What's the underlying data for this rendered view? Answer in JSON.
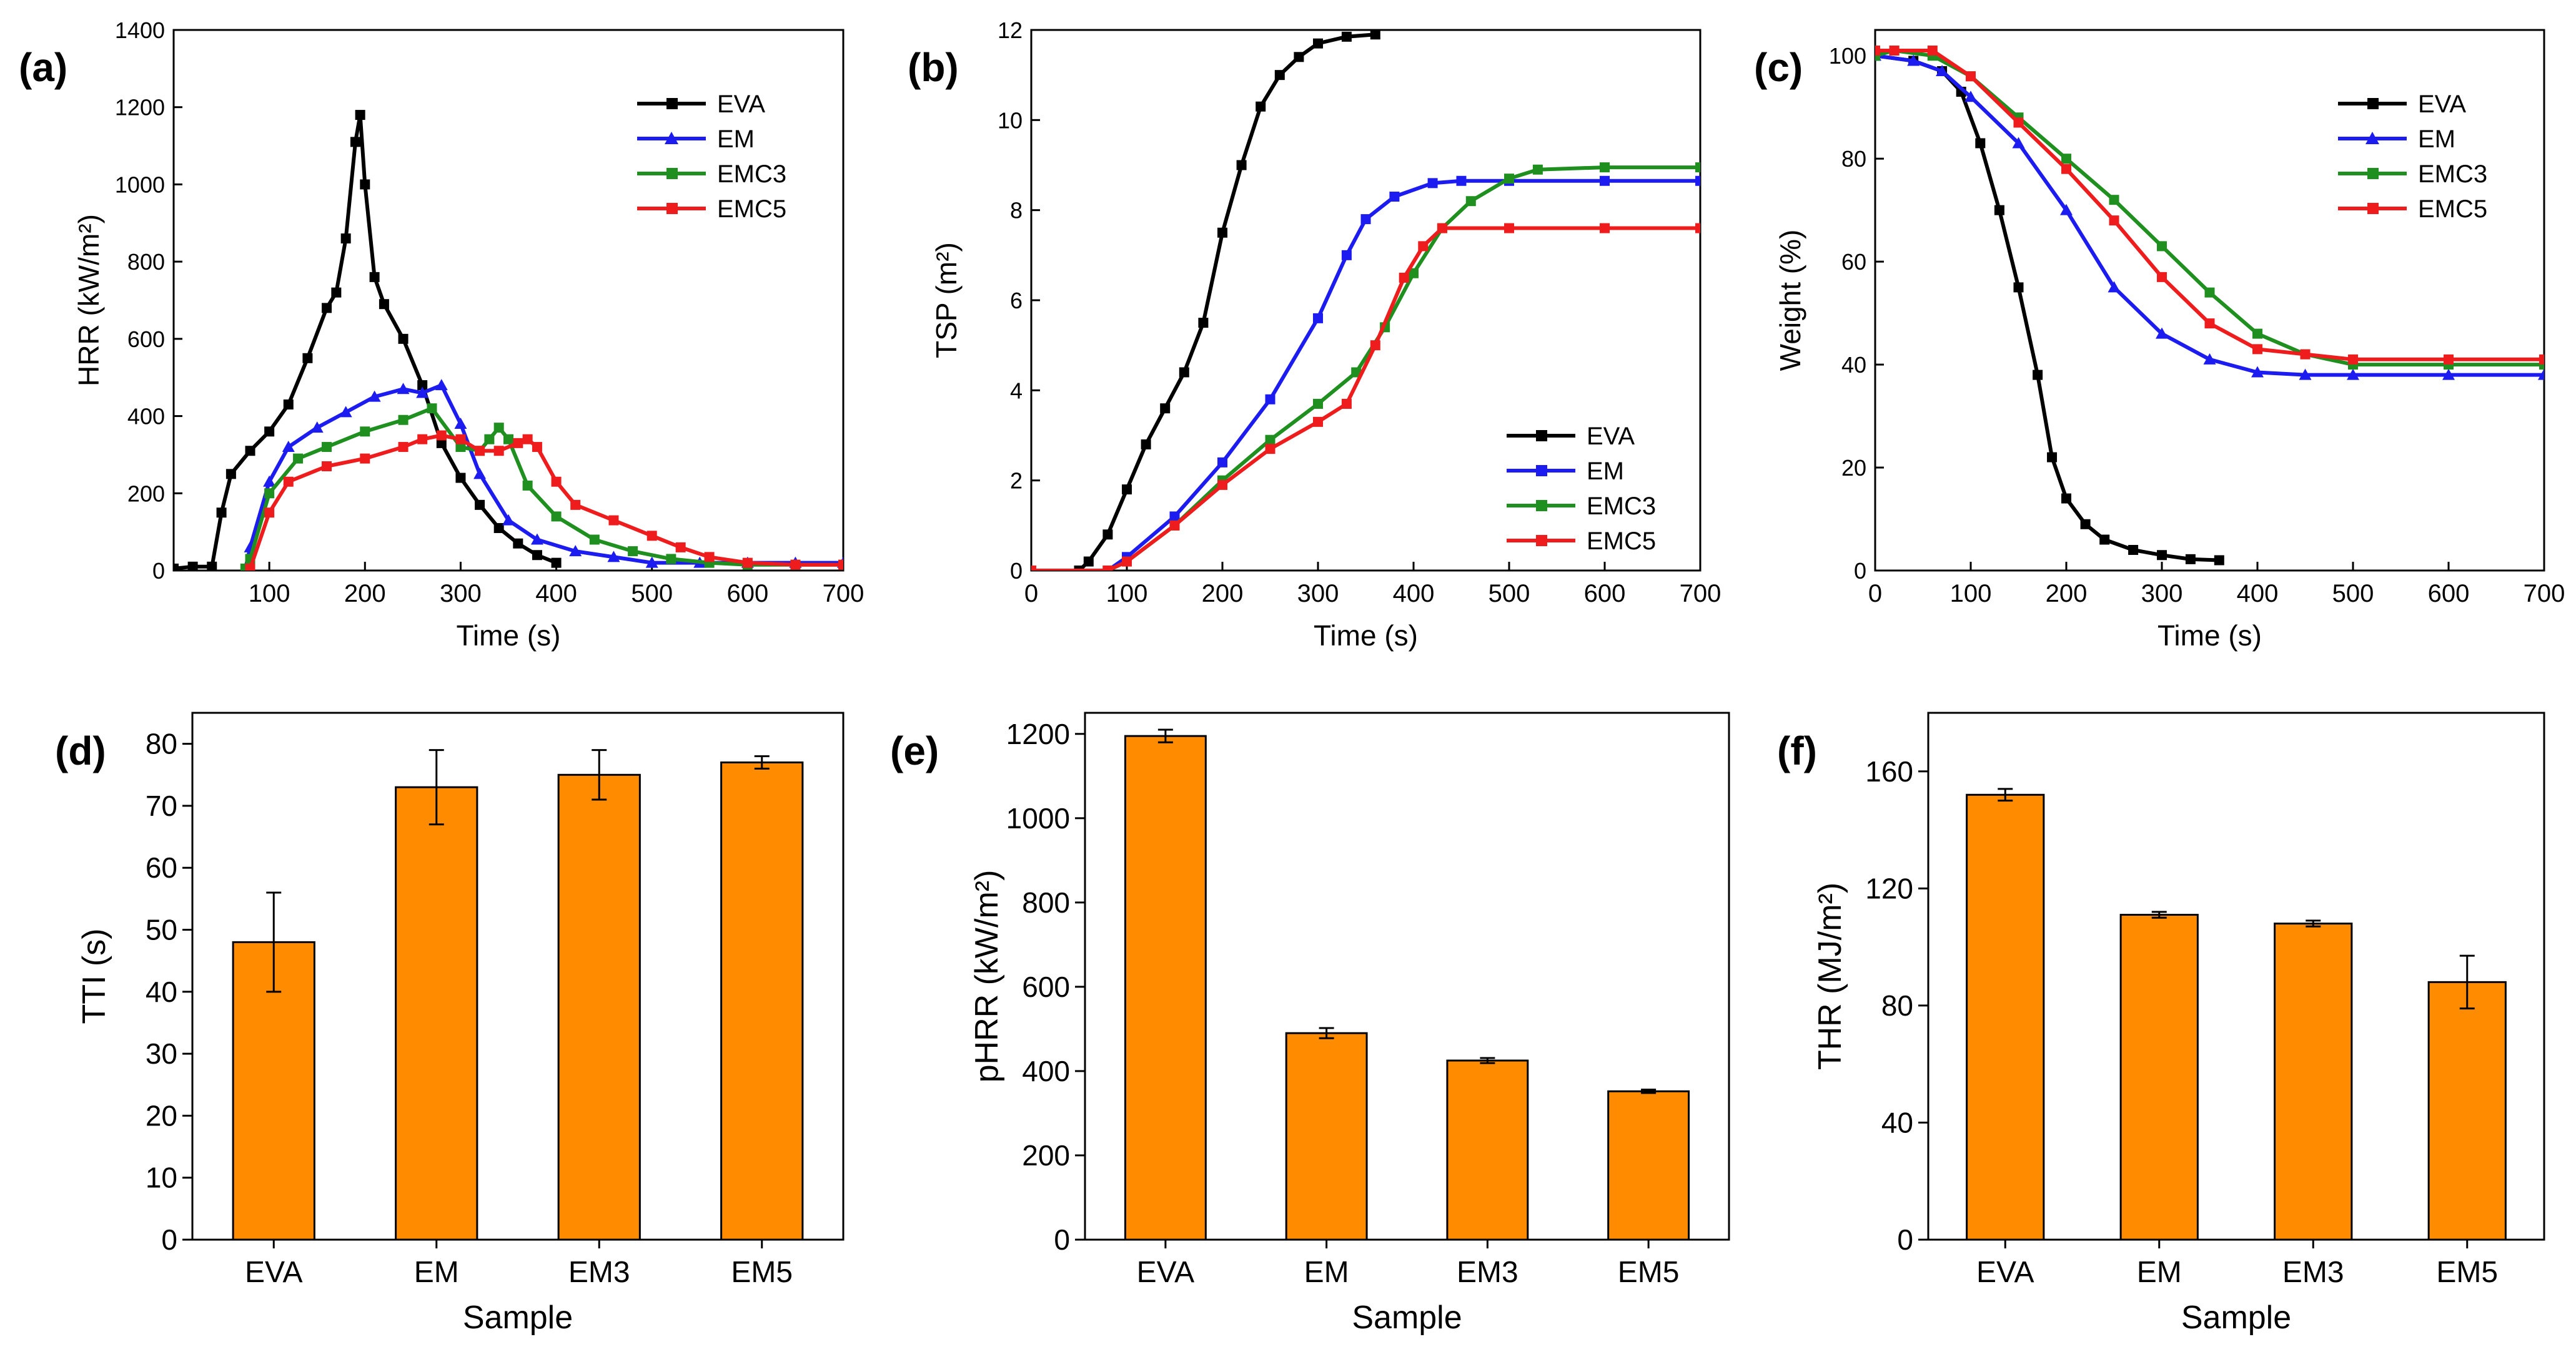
{
  "colors": {
    "EVA": "#000000",
    "EM": "#1c1cf0",
    "EMC3": "#1f8f1f",
    "EMC5": "#ee1c1c",
    "bar": "#ff8c00",
    "bar_edge": "#000000"
  },
  "chart_data": [
    {
      "id": "a",
      "panel_label": "(a)",
      "type": "line",
      "xlabel": "Time (s)",
      "ylabel": "HRR (kW/m²)",
      "xlim": [
        0,
        700
      ],
      "ylim": [
        0,
        1400
      ],
      "xticks": [
        100,
        200,
        300,
        400,
        500,
        600,
        700
      ],
      "yticks": [
        0,
        200,
        400,
        600,
        800,
        1000,
        1200,
        1400
      ],
      "legend": "top-right",
      "series": [
        {
          "name": "EVA",
          "marker": "square",
          "color": "#000000",
          "points": [
            [
              0,
              5
            ],
            [
              20,
              10
            ],
            [
              40,
              10
            ],
            [
              50,
              150
            ],
            [
              60,
              250
            ],
            [
              80,
              310
            ],
            [
              100,
              360
            ],
            [
              120,
              430
            ],
            [
              140,
              550
            ],
            [
              160,
              680
            ],
            [
              170,
              720
            ],
            [
              180,
              860
            ],
            [
              190,
              1110
            ],
            [
              195,
              1180
            ],
            [
              200,
              1000
            ],
            [
              210,
              760
            ],
            [
              220,
              690
            ],
            [
              240,
              600
            ],
            [
              260,
              480
            ],
            [
              280,
              330
            ],
            [
              300,
              240
            ],
            [
              320,
              170
            ],
            [
              340,
              110
            ],
            [
              360,
              70
            ],
            [
              380,
              40
            ],
            [
              400,
              20
            ]
          ]
        },
        {
          "name": "EM",
          "marker": "triangle",
          "color": "#1c1cf0",
          "points": [
            [
              75,
              5
            ],
            [
              80,
              60
            ],
            [
              100,
              230
            ],
            [
              120,
              320
            ],
            [
              150,
              370
            ],
            [
              180,
              410
            ],
            [
              210,
              450
            ],
            [
              240,
              470
            ],
            [
              260,
              460
            ],
            [
              280,
              480
            ],
            [
              300,
              380
            ],
            [
              320,
              250
            ],
            [
              350,
              130
            ],
            [
              380,
              80
            ],
            [
              420,
              50
            ],
            [
              460,
              35
            ],
            [
              500,
              20
            ],
            [
              550,
              20
            ],
            [
              600,
              20
            ],
            [
              650,
              20
            ],
            [
              700,
              20
            ]
          ]
        },
        {
          "name": "EMC3",
          "marker": "square",
          "color": "#1f8f1f",
          "points": [
            [
              75,
              5
            ],
            [
              80,
              30
            ],
            [
              100,
              200
            ],
            [
              130,
              290
            ],
            [
              160,
              320
            ],
            [
              200,
              360
            ],
            [
              240,
              390
            ],
            [
              270,
              420
            ],
            [
              300,
              320
            ],
            [
              320,
              310
            ],
            [
              330,
              340
            ],
            [
              340,
              370
            ],
            [
              350,
              340
            ],
            [
              370,
              220
            ],
            [
              400,
              140
            ],
            [
              440,
              80
            ],
            [
              480,
              50
            ],
            [
              520,
              30
            ],
            [
              560,
              20
            ],
            [
              600,
              15
            ],
            [
              650,
              15
            ],
            [
              700,
              15
            ]
          ]
        },
        {
          "name": "EMC5",
          "marker": "square",
          "color": "#ee1c1c",
          "points": [
            [
              80,
              5
            ],
            [
              100,
              150
            ],
            [
              120,
              230
            ],
            [
              160,
              270
            ],
            [
              200,
              290
            ],
            [
              240,
              320
            ],
            [
              260,
              340
            ],
            [
              280,
              350
            ],
            [
              300,
              340
            ],
            [
              320,
              310
            ],
            [
              340,
              310
            ],
            [
              360,
              330
            ],
            [
              370,
              340
            ],
            [
              380,
              320
            ],
            [
              400,
              230
            ],
            [
              420,
              170
            ],
            [
              460,
              130
            ],
            [
              500,
              90
            ],
            [
              530,
              60
            ],
            [
              560,
              35
            ],
            [
              600,
              20
            ],
            [
              650,
              15
            ],
            [
              700,
              15
            ]
          ]
        }
      ]
    },
    {
      "id": "b",
      "panel_label": "(b)",
      "type": "line",
      "xlabel": "Time (s)",
      "ylabel": "TSP (m²)",
      "xlim": [
        0,
        700
      ],
      "ylim": [
        0,
        12
      ],
      "xticks": [
        0,
        100,
        200,
        300,
        400,
        500,
        600,
        700
      ],
      "yticks": [
        0,
        2,
        4,
        6,
        8,
        10,
        12
      ],
      "legend": "bottom-right",
      "series": [
        {
          "name": "EVA",
          "marker": "square",
          "color": "#000000",
          "points": [
            [
              0,
              0
            ],
            [
              50,
              0
            ],
            [
              60,
              0.2
            ],
            [
              80,
              0.8
            ],
            [
              100,
              1.8
            ],
            [
              120,
              2.8
            ],
            [
              140,
              3.6
            ],
            [
              160,
              4.4
            ],
            [
              180,
              5.5
            ],
            [
              200,
              7.5
            ],
            [
              220,
              9.0
            ],
            [
              240,
              10.3
            ],
            [
              260,
              11.0
            ],
            [
              280,
              11.4
            ],
            [
              300,
              11.7
            ],
            [
              330,
              11.85
            ],
            [
              360,
              11.9
            ]
          ]
        },
        {
          "name": "EM",
          "marker": "square",
          "color": "#1c1cf0",
          "points": [
            [
              0,
              0
            ],
            [
              80,
              0
            ],
            [
              100,
              0.3
            ],
            [
              150,
              1.2
            ],
            [
              200,
              2.4
            ],
            [
              250,
              3.8
            ],
            [
              300,
              5.6
            ],
            [
              330,
              7.0
            ],
            [
              350,
              7.8
            ],
            [
              380,
              8.3
            ],
            [
              420,
              8.6
            ],
            [
              450,
              8.65
            ],
            [
              500,
              8.65
            ],
            [
              600,
              8.65
            ],
            [
              700,
              8.65
            ]
          ]
        },
        {
          "name": "EMC3",
          "marker": "square",
          "color": "#1f8f1f",
          "points": [
            [
              0,
              0
            ],
            [
              80,
              0
            ],
            [
              100,
              0.2
            ],
            [
              150,
              1.0
            ],
            [
              200,
              2.0
            ],
            [
              250,
              2.9
            ],
            [
              300,
              3.7
            ],
            [
              340,
              4.4
            ],
            [
              370,
              5.4
            ],
            [
              400,
              6.6
            ],
            [
              430,
              7.6
            ],
            [
              460,
              8.2
            ],
            [
              500,
              8.7
            ],
            [
              530,
              8.9
            ],
            [
              600,
              8.95
            ],
            [
              700,
              8.95
            ]
          ]
        },
        {
          "name": "EMC5",
          "marker": "square",
          "color": "#ee1c1c",
          "points": [
            [
              0,
              0
            ],
            [
              80,
              0
            ],
            [
              100,
              0.2
            ],
            [
              150,
              1.0
            ],
            [
              200,
              1.9
            ],
            [
              250,
              2.7
            ],
            [
              300,
              3.3
            ],
            [
              330,
              3.7
            ],
            [
              360,
              5.0
            ],
            [
              390,
              6.5
            ],
            [
              410,
              7.2
            ],
            [
              430,
              7.6
            ],
            [
              500,
              7.6
            ],
            [
              600,
              7.6
            ],
            [
              700,
              7.6
            ]
          ]
        }
      ]
    },
    {
      "id": "c",
      "panel_label": "(c)",
      "type": "line",
      "xlabel": "Time (s)",
      "ylabel": "Weight  (%)",
      "xlim": [
        0,
        700
      ],
      "ylim": [
        0,
        105
      ],
      "xticks": [
        0,
        100,
        200,
        300,
        400,
        500,
        600,
        700
      ],
      "yticks": [
        0,
        20,
        40,
        60,
        80,
        100
      ],
      "legend": "top-right",
      "series": [
        {
          "name": "EVA",
          "marker": "square",
          "color": "#000000",
          "points": [
            [
              0,
              100
            ],
            [
              40,
              99
            ],
            [
              70,
              97
            ],
            [
              90,
              93
            ],
            [
              110,
              83
            ],
            [
              130,
              70
            ],
            [
              150,
              55
            ],
            [
              170,
              38
            ],
            [
              185,
              22
            ],
            [
              200,
              14
            ],
            [
              220,
              9
            ],
            [
              240,
              6
            ],
            [
              270,
              4
            ],
            [
              300,
              3
            ],
            [
              330,
              2.2
            ],
            [
              360,
              2
            ]
          ]
        },
        {
          "name": "EM",
          "marker": "triangle",
          "color": "#1c1cf0",
          "points": [
            [
              0,
              100
            ],
            [
              40,
              99
            ],
            [
              70,
              97
            ],
            [
              100,
              92
            ],
            [
              150,
              83
            ],
            [
              200,
              70
            ],
            [
              250,
              55
            ],
            [
              300,
              46
            ],
            [
              350,
              41
            ],
            [
              400,
              38.5
            ],
            [
              450,
              38
            ],
            [
              500,
              38
            ],
            [
              600,
              38
            ],
            [
              700,
              38
            ]
          ]
        },
        {
          "name": "EMC3",
          "marker": "square",
          "color": "#1f8f1f",
          "points": [
            [
              0,
              100
            ],
            [
              20,
              101
            ],
            [
              60,
              100
            ],
            [
              100,
              96
            ],
            [
              150,
              88
            ],
            [
              200,
              80
            ],
            [
              250,
              72
            ],
            [
              300,
              63
            ],
            [
              350,
              54
            ],
            [
              400,
              46
            ],
            [
              450,
              42
            ],
            [
              500,
              40
            ],
            [
              600,
              40
            ],
            [
              700,
              40
            ]
          ]
        },
        {
          "name": "EMC5",
          "marker": "square",
          "color": "#ee1c1c",
          "points": [
            [
              0,
              101
            ],
            [
              20,
              101
            ],
            [
              60,
              101
            ],
            [
              100,
              96
            ],
            [
              150,
              87
            ],
            [
              200,
              78
            ],
            [
              250,
              68
            ],
            [
              300,
              57
            ],
            [
              350,
              48
            ],
            [
              400,
              43
            ],
            [
              450,
              42
            ],
            [
              500,
              41
            ],
            [
              600,
              41
            ],
            [
              700,
              41
            ]
          ]
        }
      ]
    },
    {
      "id": "d",
      "panel_label": "(d)",
      "type": "bar",
      "xlabel": "Sample",
      "ylabel": "TTI (s)",
      "categories": [
        "EVA",
        "EM",
        "EM3",
        "EM5"
      ],
      "values": [
        48,
        73,
        75,
        77
      ],
      "errors": [
        8,
        6,
        4,
        1
      ],
      "ylim": [
        0,
        85
      ],
      "yticks": [
        0,
        10,
        20,
        30,
        40,
        50,
        60,
        70,
        80
      ]
    },
    {
      "id": "e",
      "panel_label": "(e)",
      "type": "bar",
      "xlabel": "Sample",
      "ylabel": "pHRR (kW/m²)",
      "categories": [
        "EVA",
        "EM",
        "EM3",
        "EM5"
      ],
      "values": [
        1195,
        490,
        425,
        352
      ],
      "errors": [
        15,
        12,
        6,
        4
      ],
      "ylim": [
        0,
        1250
      ],
      "yticks": [
        0,
        200,
        400,
        600,
        800,
        1000,
        1200
      ]
    },
    {
      "id": "f",
      "panel_label": "(f)",
      "type": "bar",
      "xlabel": "Sample",
      "ylabel": "THR (MJ/m²)",
      "categories": [
        "EVA",
        "EM",
        "EM3",
        "EM5"
      ],
      "values": [
        152,
        111,
        108,
        88
      ],
      "errors": [
        2,
        1,
        1,
        9
      ],
      "ylim": [
        0,
        180
      ],
      "yticks": [
        0,
        40,
        80,
        120,
        160
      ]
    }
  ]
}
